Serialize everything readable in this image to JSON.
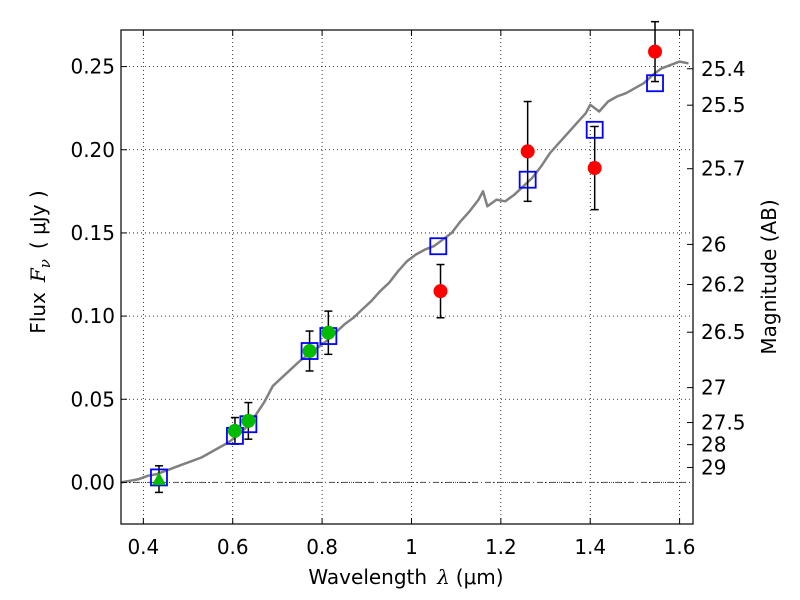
{
  "chart_data": {
    "type": "scatter",
    "xlabel_prefix": "Wavelength",
    "xlabel_symbol": "λ",
    "xlabel_unit": "(μm)",
    "ylabel_prefix": "Flux",
    "ylabel_symbol": "F",
    "ylabel_subscript": "ν",
    "ylabel_unit": "( μJy )",
    "y2label": "Magnitude (AB)",
    "xlim": [
      0.35,
      1.63
    ],
    "ylim": [
      -0.025,
      0.272
    ],
    "grid": true,
    "x_ticks": [
      0.4,
      0.6,
      0.8,
      1.0,
      1.2,
      1.4,
      1.6
    ],
    "x_tick_labels": [
      "0.4",
      "0.6",
      "0.8",
      "1",
      "1.2",
      "1.4",
      "1.6"
    ],
    "y_ticks": [
      0.0,
      0.05,
      0.1,
      0.15,
      0.2,
      0.25
    ],
    "y_tick_labels": [
      "0.00",
      "0.05",
      "0.10",
      "0.15",
      "0.20",
      "0.25"
    ],
    "y2_ticks": [
      {
        "label": "25.4",
        "flux": 0.2487
      },
      {
        "label": "25.5",
        "flux": 0.2268
      },
      {
        "label": "25.7",
        "flux": 0.1886
      },
      {
        "label": "26",
        "flux": 0.1431
      },
      {
        "label": "26.2",
        "flux": 0.119
      },
      {
        "label": "26.5",
        "flux": 0.0903
      },
      {
        "label": "27",
        "flux": 0.057
      },
      {
        "label": "27.5",
        "flux": 0.036
      },
      {
        "label": "28",
        "flux": 0.0227
      },
      {
        "label": "29",
        "flux": 0.009
      }
    ],
    "colors": {
      "model": "#808080",
      "model_photometry": "#0000ff",
      "red_points": "#ff0000",
      "green_points": "#00bb00",
      "errorbar": "#000000",
      "zero_line": "#555555"
    },
    "series": [
      {
        "kind": "model_spectrum",
        "x": [
          0.35,
          0.37,
          0.39,
          0.41,
          0.43,
          0.45,
          0.47,
          0.49,
          0.51,
          0.53,
          0.55,
          0.57,
          0.59,
          0.61,
          0.63,
          0.65,
          0.67,
          0.69,
          0.71,
          0.73,
          0.75,
          0.77,
          0.79,
          0.81,
          0.83,
          0.85,
          0.87,
          0.89,
          0.91,
          0.93,
          0.95,
          0.97,
          0.99,
          1.01,
          1.03,
          1.05,
          1.07,
          1.09,
          1.11,
          1.13,
          1.15,
          1.16,
          1.17,
          1.19,
          1.21,
          1.23,
          1.25,
          1.27,
          1.29,
          1.31,
          1.33,
          1.35,
          1.37,
          1.39,
          1.4,
          1.42,
          1.44,
          1.46,
          1.48,
          1.5,
          1.52,
          1.54,
          1.56,
          1.58,
          1.6,
          1.62
        ],
        "y": [
          0.0,
          0.001,
          0.002,
          0.004,
          0.005,
          0.007,
          0.009,
          0.011,
          0.013,
          0.015,
          0.018,
          0.021,
          0.024,
          0.028,
          0.033,
          0.04,
          0.048,
          0.058,
          0.063,
          0.068,
          0.073,
          0.077,
          0.081,
          0.085,
          0.09,
          0.095,
          0.099,
          0.104,
          0.109,
          0.115,
          0.12,
          0.127,
          0.133,
          0.137,
          0.14,
          0.142,
          0.146,
          0.15,
          0.157,
          0.163,
          0.17,
          0.175,
          0.166,
          0.17,
          0.169,
          0.173,
          0.178,
          0.183,
          0.19,
          0.198,
          0.204,
          0.21,
          0.216,
          0.222,
          0.227,
          0.223,
          0.229,
          0.232,
          0.234,
          0.237,
          0.24,
          0.245,
          0.249,
          0.251,
          0.253,
          0.252
        ]
      },
      {
        "kind": "model_photometry",
        "x": [
          0.435,
          0.605,
          0.635,
          0.772,
          0.814,
          1.06,
          1.26,
          1.41,
          1.545
        ],
        "y": [
          0.003,
          0.028,
          0.035,
          0.079,
          0.088,
          0.142,
          0.182,
          0.212,
          0.24
        ]
      },
      {
        "kind": "observed_red",
        "x": [
          1.065,
          1.26,
          1.41,
          1.545
        ],
        "y": [
          0.115,
          0.199,
          0.189,
          0.259
        ],
        "yerr": [
          0.016,
          0.03,
          0.025,
          0.018
        ]
      },
      {
        "kind": "observed_green",
        "x": [
          0.605,
          0.635,
          0.772,
          0.814
        ],
        "y": [
          0.031,
          0.037,
          0.079,
          0.09
        ],
        "yerr": [
          0.008,
          0.011,
          0.012,
          0.013
        ]
      },
      {
        "kind": "observed_limit",
        "x": [
          0.435
        ],
        "y": [
          0.002
        ],
        "yerr": [
          0.008
        ]
      }
    ]
  }
}
